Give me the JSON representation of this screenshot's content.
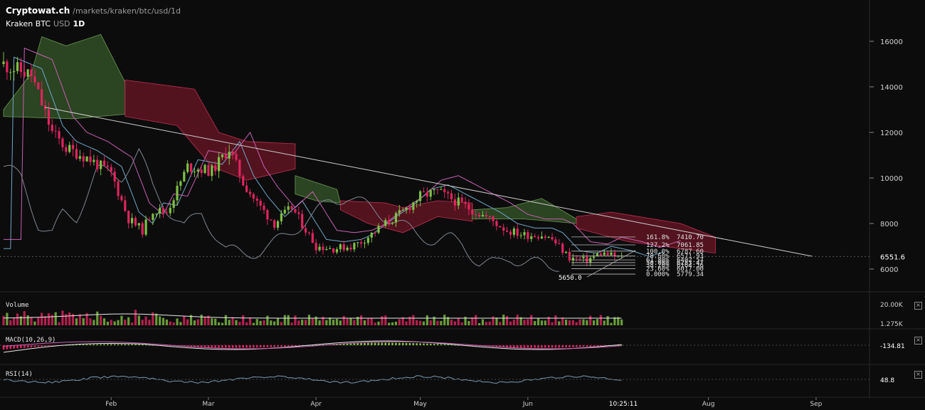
{
  "header": {
    "brand": "Cryptowat.ch",
    "path": "/markets/kraken/btc/usd/1d",
    "exchange": "Kraken",
    "pair": "BTC",
    "quote": "USD",
    "timeframe": "1D"
  },
  "chart_data": {
    "type": "candlestick",
    "price_axis": {
      "ticks": [
        6000,
        8000,
        10000,
        12000,
        14000,
        16000
      ],
      "range": [
        5250,
        17300
      ]
    },
    "current_price_label": "6551.6",
    "time_axis": {
      "labels": [
        "Feb",
        "Mar",
        "Apr",
        "May",
        "Jun",
        "Aug",
        "Sep"
      ],
      "crosshair_time": "10:25:11"
    },
    "trendline": {
      "from": {
        "date": "Jan 13",
        "price": 13100
      },
      "to": {
        "date": "Aug 24",
        "price": 6560
      }
    },
    "fib_levels": [
      {
        "pct": "161.8%",
        "price": "7410.70"
      },
      {
        "pct": "127.2%",
        "price": "7061.85"
      },
      {
        "pct": "100.0%",
        "price": "6787.60"
      },
      {
        "pct": "78.60%",
        "price": "6571.93"
      },
      {
        "pct": "61.80%",
        "price": "6402.57"
      },
      {
        "pct": "50.00%",
        "price": "6283.47"
      },
      {
        "pct": "38.20%",
        "price": "6164.36"
      },
      {
        "pct": "23.60%",
        "price": "6017.00"
      },
      {
        "pct": "0.000%",
        "price": "5779.34"
      }
    ],
    "low_marker": "5650.0",
    "volume": {
      "label": "Volume",
      "ticks": [
        "20.00K",
        "1.275K"
      ]
    },
    "macd": {
      "label": "MACD(10,26,9)",
      "value": "-134.81"
    },
    "rsi": {
      "label": "RSI(14)",
      "value": "48.8"
    }
  },
  "colors": {
    "background": "#0c0c0d",
    "up": "#7fbf45",
    "down": "#e0245e",
    "cloud_bull": "#2f4a25",
    "cloud_bear": "#5a1420",
    "tenkan": "#6fa8c8",
    "kijun": "#c860b0",
    "chikou": "#808890",
    "trendline": "#cccccc"
  },
  "controls": {
    "close_icon": "×"
  }
}
